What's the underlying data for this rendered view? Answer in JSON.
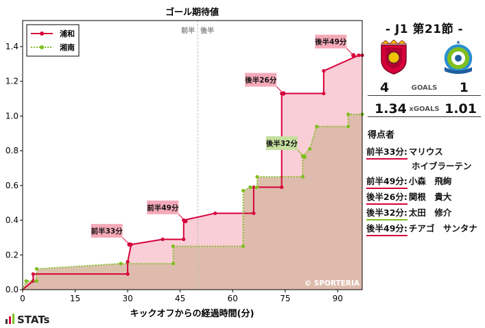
{
  "chart_data": {
    "type": "line",
    "title": "ゴール期待値",
    "xlabel": "キックオフからの経過時間(分)",
    "ylabel": "",
    "xlim": [
      0,
      97
    ],
    "ylim": [
      0,
      1.55
    ],
    "xticks": [
      0,
      15,
      30,
      45,
      60,
      75,
      90
    ],
    "yticks": [
      0.0,
      0.2,
      0.4,
      0.6,
      0.8,
      1.0,
      1.2,
      1.4
    ],
    "ytick_labels": [
      "0.0",
      "0.2",
      "0.4",
      "0.6",
      "0.8",
      "1.0",
      "1.2",
      "1.4"
    ],
    "halftime_x": 50,
    "halftime_labels": [
      "前半",
      "後半"
    ],
    "legend_position": "top-left",
    "grid": false,
    "watermark": "© SPORTERIA",
    "series": [
      {
        "name": "浦和",
        "color": "#d6003a",
        "fill": "#f7c2cc",
        "style": "solid",
        "points": [
          [
            0,
            0
          ],
          [
            3,
            0.05
          ],
          [
            3,
            0.09
          ],
          [
            30,
            0.09
          ],
          [
            30,
            0.16
          ],
          [
            31,
            0.26
          ],
          [
            40,
            0.29
          ],
          [
            46,
            0.29
          ],
          [
            46,
            0.4
          ],
          [
            55,
            0.44
          ],
          [
            66,
            0.44
          ],
          [
            66,
            0.59
          ],
          [
            74,
            0.59
          ],
          [
            74,
            1.13
          ],
          [
            86,
            1.13
          ],
          [
            86,
            1.26
          ],
          [
            96,
            1.35
          ],
          [
            97,
            1.35
          ]
        ]
      },
      {
        "name": "湘南",
        "color": "#7fbf1f",
        "fill": "#e1f0cc",
        "style": "dotted",
        "points": [
          [
            0,
            0
          ],
          [
            1,
            0.05
          ],
          [
            4,
            0.05
          ],
          [
            4,
            0.12
          ],
          [
            28,
            0.15
          ],
          [
            43,
            0.15
          ],
          [
            43,
            0.25
          ],
          [
            63,
            0.25
          ],
          [
            63,
            0.37
          ],
          [
            63,
            0.57
          ],
          [
            65,
            0.59
          ],
          [
            67,
            0.59
          ],
          [
            67,
            0.62
          ],
          [
            67,
            0.65
          ],
          [
            80,
            0.65
          ],
          [
            80,
            0.77
          ],
          [
            82,
            0.81
          ],
          [
            84,
            0.94
          ],
          [
            93,
            0.94
          ],
          [
            93,
            1.01
          ],
          [
            97,
            1.01
          ]
        ]
      }
    ],
    "annotations": [
      {
        "label": "前半33分",
        "x": 30.5,
        "y": 0.26,
        "color": "#f4a9b8",
        "series": "浦和"
      },
      {
        "label": "前半49分",
        "x": 46.5,
        "y": 0.395,
        "color": "#f4a9b8",
        "series": "浦和"
      },
      {
        "label": "後半26分",
        "x": 74.5,
        "y": 1.13,
        "color": "#f4a9b8",
        "series": "浦和"
      },
      {
        "label": "後半32分",
        "x": 80.5,
        "y": 0.765,
        "color": "#c5df9f",
        "series": "湘南"
      },
      {
        "label": "後半49分",
        "x": 94.5,
        "y": 1.35,
        "color": "#f4a9b8",
        "series": "浦和"
      }
    ]
  },
  "panel": {
    "match_title": "- J1 第21節 -",
    "home": {
      "name": "浦和",
      "goals": "4",
      "xgoals": "1.34",
      "crest_icon": "urawa-crest-icon",
      "color": "#d6003a"
    },
    "away": {
      "name": "湘南",
      "goals": "1",
      "xgoals": "1.01",
      "crest_icon": "shonan-crest-icon",
      "color": "#7fbf1f"
    },
    "goals_label": "GOALS",
    "xgoals_label": "xGOALS",
    "scorers_title": "得点者",
    "scorers": [
      {
        "time": "前半33分:",
        "name": "マリウス",
        "name2": "ホイブラーテン",
        "team": "home"
      },
      {
        "time": "前半49分:",
        "name": "小森　飛絢",
        "team": "home"
      },
      {
        "time": "後半26分:",
        "name": "関根　貴大",
        "team": "home"
      },
      {
        "time": "後半32分:",
        "name": "太田　修介",
        "team": "away"
      },
      {
        "time": "後半49分:",
        "name": "チアゴ　サンタナ",
        "team": "home"
      }
    ]
  },
  "logo": {
    "text": "STATs"
  }
}
